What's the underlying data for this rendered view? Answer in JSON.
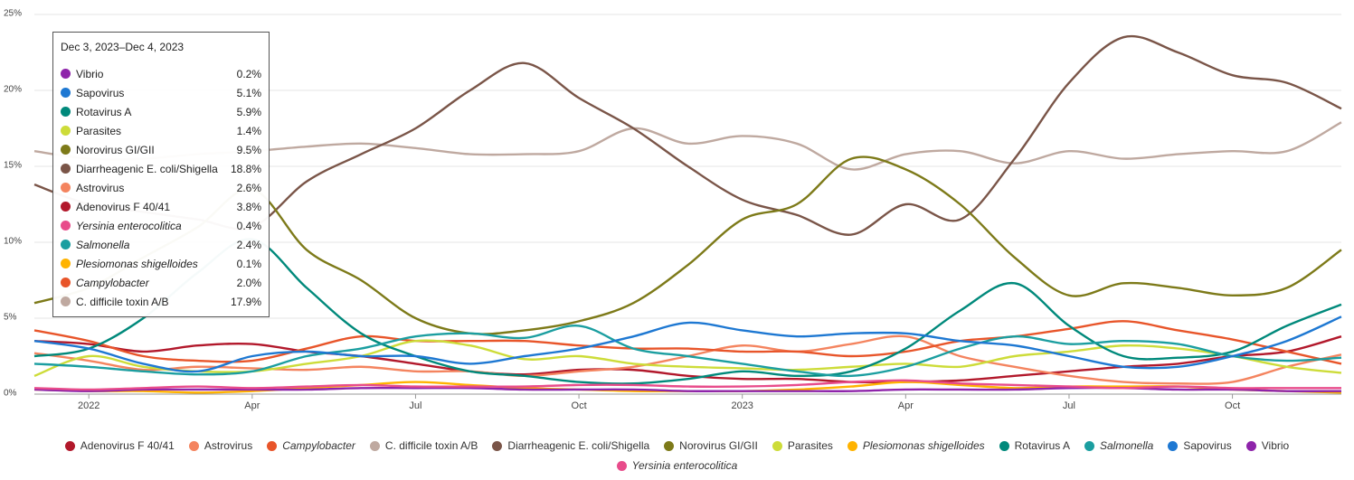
{
  "chart_data": {
    "type": "line",
    "x": [
      "2021-12",
      "2022-01",
      "2022-02",
      "2022-03",
      "2022-04",
      "2022-05",
      "2022-06",
      "2022-07",
      "2022-08",
      "2022-09",
      "2022-10",
      "2022-11",
      "2022-12",
      "2023-01",
      "2023-02",
      "2023-03",
      "2023-04",
      "2023-05",
      "2023-06",
      "2023-07",
      "2023-08",
      "2023-09",
      "2023-10",
      "2023-11",
      "2023-12"
    ],
    "xlim": [
      "2021-12",
      "2023-12"
    ],
    "xticks": [
      {
        "value": "2022-01",
        "label": "2022"
      },
      {
        "value": "2022-04",
        "label": "Apr"
      },
      {
        "value": "2022-07",
        "label": "Jul"
      },
      {
        "value": "2022-10",
        "label": "Oct"
      },
      {
        "value": "2023-01",
        "label": "2023"
      },
      {
        "value": "2023-04",
        "label": "Apr"
      },
      {
        "value": "2023-07",
        "label": "Jul"
      },
      {
        "value": "2023-10",
        "label": "Oct"
      }
    ],
    "ylim": [
      0,
      25
    ],
    "yticks": [
      {
        "value": 0,
        "label": "0%"
      },
      {
        "value": 5,
        "label": "5%"
      },
      {
        "value": 10,
        "label": "10%"
      },
      {
        "value": 15,
        "label": "15%"
      },
      {
        "value": 20,
        "label": "20%"
      },
      {
        "value": 25,
        "label": "25%"
      }
    ],
    "grid": true,
    "legend": "bottom",
    "series": [
      {
        "name": "Adenovirus F 40/41",
        "color": "#b2182b",
        "values": [
          3.5,
          3.3,
          2.8,
          3.2,
          3.3,
          2.8,
          2.5,
          2,
          1.5,
          1.3,
          1.6,
          1.6,
          1.2,
          1,
          1,
          0.8,
          0.8,
          0.9,
          1.2,
          1.5,
          1.8,
          2,
          2.5,
          2.8,
          3.8
        ]
      },
      {
        "name": "Astrovirus",
        "color": "#f4845f",
        "values": [
          2.7,
          2.2,
          1.6,
          1.8,
          1.7,
          1.6,
          1.8,
          1.5,
          1.5,
          1.2,
          1.5,
          1.8,
          2.5,
          3.2,
          2.8,
          3.3,
          3.8,
          2.5,
          1.8,
          1.2,
          0.8,
          0.7,
          0.8,
          1.8,
          2.6
        ]
      },
      {
        "name": "Campylobacter",
        "italic": true,
        "color": "#e8552a",
        "values": [
          4.2,
          3.5,
          2.5,
          2.2,
          2.2,
          3,
          3.8,
          3.5,
          3.5,
          3.5,
          3.2,
          3,
          3,
          2.8,
          2.8,
          2.5,
          2.8,
          3.5,
          3.8,
          4.3,
          4.8,
          4.2,
          3.6,
          2.8,
          2.0
        ]
      },
      {
        "name": "C. difficile toxin A/B",
        "color": "#bfa9a0",
        "values": [
          16,
          15.5,
          15.5,
          15.8,
          16,
          16.3,
          16.5,
          16.2,
          15.8,
          15.8,
          16,
          17.5,
          16.5,
          17,
          16.5,
          14.8,
          15.8,
          16,
          15.2,
          16,
          15.5,
          15.8,
          16,
          16,
          17.9
        ]
      },
      {
        "name": "Diarrheagenic E. coli/Shigella",
        "color": "#7a5548",
        "values": [
          13.8,
          12.5,
          12,
          11.5,
          11,
          14,
          15.8,
          17.5,
          20,
          21.8,
          19.5,
          17.5,
          15,
          12.8,
          11.8,
          10.5,
          12.5,
          11.5,
          15.5,
          20.5,
          23.5,
          22.5,
          21,
          20.5,
          18.8
        ]
      },
      {
        "name": "Norovirus GI/GII",
        "color": "#7d7a19",
        "values": [
          6,
          7,
          9,
          11,
          13.5,
          9.5,
          7.5,
          5,
          4,
          4.2,
          4.8,
          6,
          8.5,
          11.5,
          12.5,
          15.5,
          14.8,
          12.5,
          9,
          6.5,
          7.3,
          7,
          6.5,
          7,
          9.5
        ]
      },
      {
        "name": "Parasites",
        "color": "#cddc39",
        "values": [
          1.2,
          2.5,
          1.8,
          1.5,
          1.5,
          2,
          2.5,
          3.5,
          3.2,
          2.3,
          2.5,
          2,
          1.8,
          1.7,
          1.6,
          1.8,
          2,
          1.8,
          2.5,
          2.8,
          3.2,
          3,
          2.5,
          1.8,
          1.4
        ]
      },
      {
        "name": "Plesiomonas shigelloides",
        "italic": true,
        "color": "#ffb300",
        "values": [
          0.3,
          0.2,
          0.2,
          0.1,
          0.2,
          0.4,
          0.6,
          0.8,
          0.6,
          0.4,
          0.3,
          0.2,
          0.2,
          0.2,
          0.3,
          0.5,
          0.8,
          0.6,
          0.4,
          0.5,
          0.5,
          0.5,
          0.3,
          0.2,
          0.1
        ]
      },
      {
        "name": "Rotavirus A",
        "color": "#00897b",
        "values": [
          2.5,
          3,
          5,
          8,
          10.2,
          7,
          4,
          2.5,
          1.5,
          1.2,
          0.8,
          0.7,
          1,
          1.5,
          1.2,
          1.5,
          3,
          5.5,
          7.3,
          4.5,
          2.5,
          2.4,
          2.8,
          4.5,
          5.9
        ]
      },
      {
        "name": "Salmonella",
        "italic": true,
        "color": "#1b9ea0",
        "values": [
          2,
          1.8,
          1.5,
          1.3,
          1.5,
          2.5,
          3,
          3.8,
          4,
          3.7,
          4.5,
          3,
          2.5,
          2,
          1.5,
          1.2,
          1.8,
          3,
          3.8,
          3.3,
          3.5,
          3.3,
          2.5,
          2.2,
          2.4
        ]
      },
      {
        "name": "Sapovirus",
        "color": "#1e78d2",
        "values": [
          3.5,
          3,
          2,
          1.5,
          2.5,
          2.8,
          2.5,
          2.5,
          2,
          2.5,
          3,
          3.8,
          4.7,
          4.2,
          3.8,
          4,
          4,
          3.5,
          3.2,
          2.5,
          1.8,
          1.8,
          2.5,
          3.5,
          5.1
        ]
      },
      {
        "name": "Vibrio",
        "color": "#8e24aa",
        "values": [
          0.3,
          0.2,
          0.3,
          0.3,
          0.3,
          0.3,
          0.4,
          0.4,
          0.4,
          0.3,
          0.3,
          0.3,
          0.2,
          0.2,
          0.2,
          0.2,
          0.3,
          0.3,
          0.3,
          0.4,
          0.4,
          0.3,
          0.3,
          0.2,
          0.2
        ]
      },
      {
        "name": "Yersinia enterocolitica",
        "italic": true,
        "color": "#e84c8b",
        "values": [
          0.4,
          0.3,
          0.4,
          0.5,
          0.4,
          0.5,
          0.6,
          0.5,
          0.5,
          0.5,
          0.6,
          0.6,
          0.5,
          0.5,
          0.6,
          0.8,
          0.9,
          0.7,
          0.6,
          0.5,
          0.4,
          0.5,
          0.4,
          0.4,
          0.4
        ]
      }
    ],
    "tooltip": {
      "title": "Dec 3, 2023–Dec 4, 2023",
      "items": [
        {
          "name": "Vibrio",
          "value": 0.2,
          "value_label": "0.2%"
        },
        {
          "name": "Sapovirus",
          "value": 5.1,
          "value_label": "5.1%"
        },
        {
          "name": "Rotavirus A",
          "value": 5.9,
          "value_label": "5.9%"
        },
        {
          "name": "Parasites",
          "value": 1.4,
          "value_label": "1.4%"
        },
        {
          "name": "Norovirus GI/GII",
          "value": 9.5,
          "value_label": "9.5%"
        },
        {
          "name": "Diarrheagenic E. coli/Shigella",
          "value": 18.8,
          "value_label": "18.8%"
        },
        {
          "name": "Astrovirus",
          "value": 2.6,
          "value_label": "2.6%"
        },
        {
          "name": "Adenovirus F 40/41",
          "value": 3.8,
          "value_label": "3.8%"
        },
        {
          "name": "Yersinia enterocolitica",
          "value": 0.4,
          "value_label": "0.4%"
        },
        {
          "name": "Salmonella",
          "value": 2.4,
          "value_label": "2.4%"
        },
        {
          "name": "Plesiomonas shigelloides",
          "value": 0.1,
          "value_label": "0.1%"
        },
        {
          "name": "Campylobacter",
          "value": 2.0,
          "value_label": "2.0%"
        },
        {
          "name": "C. difficile toxin A/B",
          "value": 17.9,
          "value_label": "17.9%"
        }
      ]
    }
  }
}
